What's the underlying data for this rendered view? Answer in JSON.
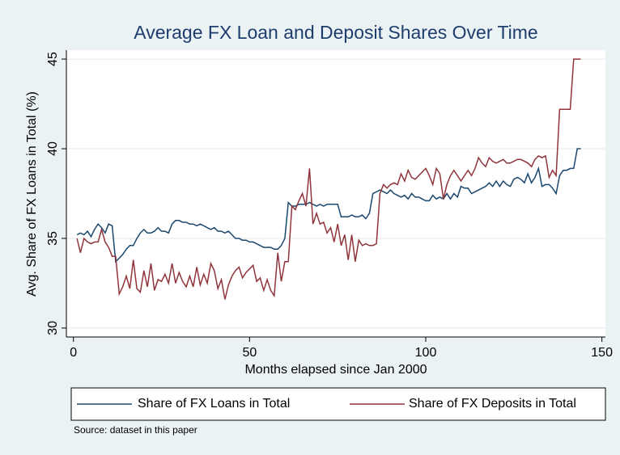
{
  "chart_data": {
    "type": "line",
    "title": "Average FX Loan and Deposit Shares Over Time",
    "xlabel": "Months elapsed since Jan 2000",
    "ylabel": "Avg. Share of FX Loans in Total (%)",
    "source": "Source: dataset in this paper",
    "x": [
      1,
      2,
      3,
      4,
      5,
      6,
      7,
      8,
      9,
      10,
      11,
      12,
      13,
      14,
      15,
      16,
      17,
      18,
      19,
      20,
      21,
      22,
      23,
      24,
      25,
      26,
      27,
      28,
      29,
      30,
      31,
      32,
      33,
      34,
      35,
      36,
      37,
      38,
      39,
      40,
      41,
      42,
      43,
      44,
      45,
      46,
      47,
      48,
      49,
      50,
      51,
      52,
      53,
      54,
      55,
      56,
      57,
      58,
      59,
      60,
      61,
      62,
      63,
      64,
      65,
      66,
      67,
      68,
      69,
      70,
      71,
      72,
      73,
      74,
      75,
      76,
      77,
      78,
      79,
      80,
      81,
      82,
      83,
      84,
      85,
      86,
      87,
      88,
      89,
      90,
      91,
      92,
      93,
      94,
      95,
      96,
      97,
      98,
      99,
      100,
      101,
      102,
      103,
      104,
      105,
      106,
      107,
      108,
      109,
      110,
      111,
      112,
      113,
      114,
      115,
      116,
      117,
      118,
      119,
      120,
      121,
      122,
      123,
      124,
      125,
      126,
      127,
      128,
      129,
      130,
      131,
      132,
      133,
      134,
      135,
      136,
      137,
      138,
      139,
      140,
      141,
      142,
      143,
      144
    ],
    "series": [
      {
        "name": "Share of FX Loans in Total",
        "color": "#1a476f",
        "values": [
          35.2,
          35.3,
          35.2,
          35.4,
          35.1,
          35.5,
          35.8,
          35.6,
          35.3,
          35.8,
          35.7,
          33.7,
          33.9,
          34.1,
          34.4,
          34.6,
          34.6,
          35.0,
          35.3,
          35.5,
          35.3,
          35.3,
          35.4,
          35.6,
          35.4,
          35.4,
          35.3,
          35.8,
          36.0,
          36.0,
          35.9,
          35.9,
          35.8,
          35.8,
          35.7,
          35.8,
          35.7,
          35.6,
          35.5,
          35.6,
          35.4,
          35.4,
          35.3,
          35.4,
          35.2,
          35.0,
          35.0,
          34.9,
          34.9,
          34.8,
          34.8,
          34.7,
          34.6,
          34.5,
          34.5,
          34.5,
          34.4,
          34.4,
          34.6,
          35.0,
          37.0,
          36.8,
          36.8,
          36.9,
          36.9,
          36.9,
          37.0,
          36.9,
          36.8,
          36.9,
          36.8,
          36.9,
          36.9,
          36.9,
          36.9,
          36.2,
          36.2,
          36.2,
          36.3,
          36.2,
          36.2,
          36.3,
          36.1,
          36.4,
          37.5,
          37.6,
          37.7,
          37.6,
          37.5,
          37.7,
          37.5,
          37.4,
          37.3,
          37.4,
          37.2,
          37.5,
          37.3,
          37.3,
          37.2,
          37.1,
          37.1,
          37.4,
          37.2,
          37.3,
          37.2,
          37.5,
          37.2,
          37.5,
          37.3,
          37.9,
          37.8,
          37.8,
          37.5,
          37.6,
          37.7,
          37.8,
          37.9,
          38.1,
          37.9,
          38.2,
          37.9,
          38.2,
          38.0,
          37.9,
          38.3,
          38.4,
          38.3,
          38.1,
          38.6,
          38.1,
          38.4,
          38.9,
          37.9,
          38.0,
          38.0,
          37.8,
          37.5,
          38.5,
          38.8,
          38.8,
          38.9,
          38.9,
          40.0,
          40.0
        ]
      },
      {
        "name": "Share of FX Deposits in Total",
        "color": "#90353b",
        "values": [
          35.0,
          34.2,
          35.0,
          34.8,
          34.7,
          34.8,
          34.8,
          35.5,
          34.8,
          34.5,
          34.0,
          34.0,
          31.9,
          32.3,
          32.9,
          32.2,
          33.8,
          32.2,
          32.0,
          33.2,
          32.3,
          33.6,
          32.1,
          32.7,
          32.6,
          33.0,
          32.5,
          33.6,
          32.5,
          33.1,
          32.6,
          32.3,
          32.9,
          32.3,
          33.4,
          32.4,
          33.0,
          32.5,
          33.6,
          33.2,
          32.2,
          32.7,
          31.6,
          32.4,
          32.9,
          33.2,
          33.4,
          32.8,
          33.1,
          33.3,
          33.5,
          32.6,
          32.8,
          32.1,
          32.7,
          32.1,
          31.8,
          34.2,
          32.6,
          33.7,
          33.7,
          36.8,
          36.6,
          37.1,
          37.5,
          36.8,
          38.9,
          35.8,
          36.4,
          35.8,
          35.9,
          35.3,
          35.6,
          34.8,
          35.8,
          34.6,
          35.2,
          33.8,
          35.2,
          33.7,
          34.9,
          34.6,
          34.7,
          34.6,
          34.6,
          34.7,
          37.5,
          38.0,
          37.8,
          38.0,
          38.1,
          38.0,
          38.6,
          38.2,
          38.8,
          38.4,
          38.3,
          38.5,
          38.7,
          38.9,
          38.5,
          38.0,
          38.9,
          38.6,
          37.2,
          38.0,
          38.5,
          38.8,
          38.5,
          38.2,
          38.5,
          38.8,
          38.5,
          38.9,
          39.5,
          39.2,
          39.0,
          39.5,
          39.3,
          39.2,
          39.3,
          39.4,
          39.2,
          39.2,
          39.3,
          39.4,
          39.4,
          39.3,
          39.2,
          39.0,
          39.4,
          39.6,
          39.5,
          39.6,
          38.4,
          38.8,
          38.5,
          42.2,
          42.2,
          42.2,
          42.2,
          45.0,
          45.0,
          45.0
        ]
      }
    ],
    "xlim": [
      -2,
      151
    ],
    "xticks": [
      0,
      50,
      100,
      150
    ],
    "ylim": [
      29.5,
      45.5
    ],
    "yticks": [
      30,
      35,
      40,
      45
    ],
    "grid": true,
    "legend": "bottom"
  }
}
